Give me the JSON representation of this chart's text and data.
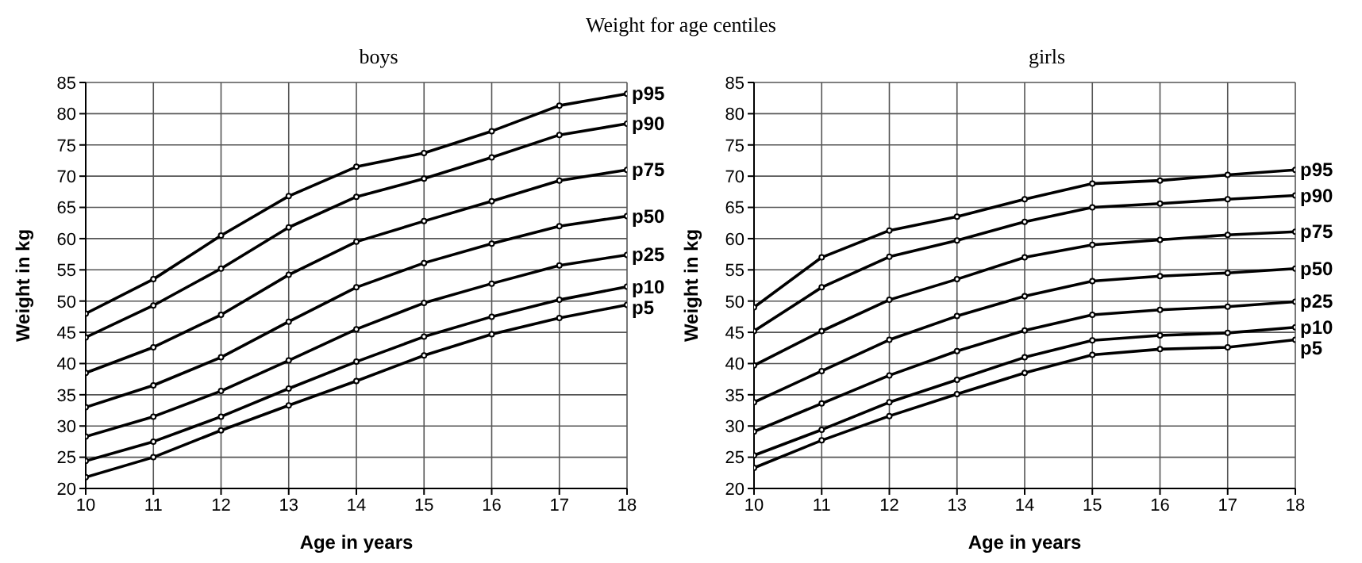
{
  "chart_data": [
    {
      "type": "line",
      "title": "Weight for age centiles",
      "subtitle": "boys",
      "xlabel": "Age in years",
      "ylabel": "Weight in kg",
      "x": [
        10,
        11,
        12,
        13,
        14,
        15,
        16,
        17,
        18
      ],
      "xlim": [
        10,
        18
      ],
      "xticks": [
        10,
        11,
        12,
        13,
        14,
        15,
        16,
        17,
        18
      ],
      "ylim": [
        20,
        85
      ],
      "yticks": [
        20,
        25,
        30,
        35,
        40,
        45,
        50,
        55,
        60,
        65,
        70,
        75,
        80,
        85
      ],
      "grid": true,
      "marker": "circle",
      "line_style": "solid",
      "series": [
        {
          "name": "p95",
          "color": "#000000",
          "values": [
            48,
            53.5,
            60.5,
            66.8,
            71.5,
            73.7,
            77.2,
            81.3,
            83.2
          ]
        },
        {
          "name": "p90",
          "color": "#000000",
          "values": [
            44.2,
            49.3,
            55.2,
            61.8,
            66.7,
            69.6,
            73,
            76.6,
            78.4
          ]
        },
        {
          "name": "p75",
          "color": "#000000",
          "values": [
            38.5,
            42.6,
            47.8,
            54.2,
            59.5,
            62.8,
            66,
            69.3,
            71
          ]
        },
        {
          "name": "p50",
          "color": "#000000",
          "values": [
            33,
            36.5,
            41,
            46.7,
            52.2,
            56.1,
            59.2,
            62,
            63.6
          ]
        },
        {
          "name": "p25",
          "color": "#000000",
          "values": [
            28.3,
            31.5,
            35.6,
            40.5,
            45.5,
            49.7,
            52.8,
            55.7,
            57.4
          ]
        },
        {
          "name": "p10",
          "color": "#000000",
          "values": [
            24.4,
            27.5,
            31.5,
            36,
            40.3,
            44.3,
            47.5,
            50.2,
            52.3
          ]
        },
        {
          "name": "p5",
          "color": "#000000",
          "values": [
            21.8,
            25,
            29.3,
            33.3,
            37.2,
            41.3,
            44.7,
            47.3,
            49.4
          ]
        }
      ]
    },
    {
      "type": "line",
      "subtitle": "girls",
      "xlabel": "Age in years",
      "ylabel": "Weight in kg",
      "x": [
        10,
        11,
        12,
        13,
        14,
        15,
        16,
        17,
        18
      ],
      "xlim": [
        10,
        18
      ],
      "xticks": [
        10,
        11,
        12,
        13,
        14,
        15,
        16,
        17,
        18
      ],
      "ylim": [
        20,
        85
      ],
      "yticks": [
        20,
        25,
        30,
        35,
        40,
        45,
        50,
        55,
        60,
        65,
        70,
        75,
        80,
        85
      ],
      "grid": true,
      "marker": "circle",
      "line_style": "solid",
      "series": [
        {
          "name": "p95",
          "color": "#000000",
          "values": [
            49,
            57,
            61.3,
            63.5,
            66.3,
            68.8,
            69.3,
            70.2,
            71
          ]
        },
        {
          "name": "p90",
          "color": "#000000",
          "values": [
            45.2,
            52.2,
            57.1,
            59.7,
            62.7,
            65,
            65.6,
            66.3,
            66.9
          ]
        },
        {
          "name": "p75",
          "color": "#000000",
          "values": [
            39.7,
            45.2,
            50.2,
            53.5,
            57,
            59,
            59.8,
            60.6,
            61.1
          ]
        },
        {
          "name": "p50",
          "color": "#000000",
          "values": [
            33.8,
            38.8,
            43.8,
            47.6,
            50.8,
            53.2,
            54,
            54.5,
            55.2
          ]
        },
        {
          "name": "p25",
          "color": "#000000",
          "values": [
            29.1,
            33.6,
            38.1,
            42,
            45.3,
            47.8,
            48.6,
            49.1,
            49.9
          ]
        },
        {
          "name": "p10",
          "color": "#000000",
          "values": [
            25.3,
            29.4,
            33.8,
            37.4,
            41,
            43.7,
            44.5,
            44.9,
            45.8
          ]
        },
        {
          "name": "p5",
          "color": "#000000",
          "values": [
            23.3,
            27.7,
            31.6,
            35.1,
            38.5,
            41.4,
            42.3,
            42.6,
            43.8
          ]
        }
      ]
    }
  ]
}
